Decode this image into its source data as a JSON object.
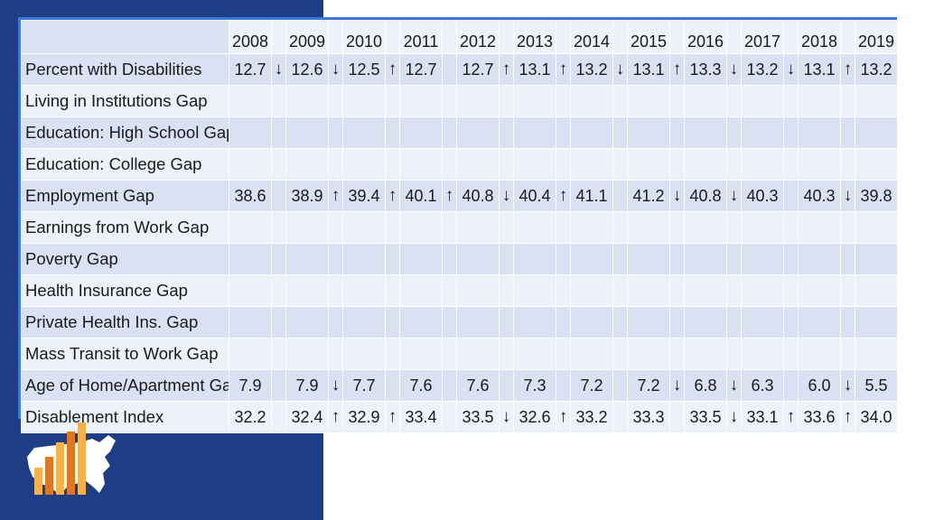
{
  "table": {
    "years": [
      "2008",
      "2009",
      "2010",
      "2011",
      "2012",
      "2013",
      "2014",
      "2015",
      "2016",
      "2017",
      "2018",
      "2019"
    ],
    "rows": [
      {
        "label": "Percent with Disabilities",
        "cells": [
          "12.7",
          "↓",
          "12.6",
          "↓",
          "12.5",
          "↑",
          "12.7",
          "",
          "12.7",
          "↑",
          "13.1",
          "↑",
          "13.2",
          "↓",
          "13.1",
          "↑",
          "13.3",
          "↓",
          "13.2",
          "↓",
          "13.1",
          "↑",
          "13.2"
        ]
      },
      {
        "label": "Living in Institutions Gap",
        "cells": [
          "",
          "",
          "",
          "",
          "",
          "",
          "",
          "",
          "",
          "",
          "",
          "",
          "",
          "",
          "",
          "",
          "",
          "",
          "",
          "",
          "",
          "",
          ""
        ]
      },
      {
        "label": "Education: High School Gap",
        "cells": [
          "",
          "",
          "",
          "",
          "",
          "",
          "",
          "",
          "",
          "",
          "",
          "",
          "",
          "",
          "",
          "",
          "",
          "",
          "",
          "",
          "",
          "",
          ""
        ]
      },
      {
        "label": "Education: College Gap",
        "cells": [
          "",
          "",
          "",
          "",
          "",
          "",
          "",
          "",
          "",
          "",
          "",
          "",
          "",
          "",
          "",
          "",
          "",
          "",
          "",
          "",
          "",
          "",
          ""
        ]
      },
      {
        "label": "Employment Gap",
        "cells": [
          "38.6",
          "",
          "38.9",
          "↑",
          "39.4",
          "↑",
          "40.1",
          "↑",
          "40.8",
          "↓",
          "40.4",
          "↑",
          "41.1",
          "",
          "41.2",
          "↓",
          "40.8",
          "↓",
          "40.3",
          "",
          "40.3",
          "↓",
          "39.8"
        ]
      },
      {
        "label": "Earnings from Work Gap",
        "cells": [
          "",
          "",
          "",
          "",
          "",
          "",
          "",
          "",
          "",
          "",
          "",
          "",
          "",
          "",
          "",
          "",
          "",
          "",
          "",
          "",
          "",
          "",
          ""
        ]
      },
      {
        "label": "Poverty Gap",
        "cells": [
          "",
          "",
          "",
          "",
          "",
          "",
          "",
          "",
          "",
          "",
          "",
          "",
          "",
          "",
          "",
          "",
          "",
          "",
          "",
          "",
          "",
          "",
          ""
        ]
      },
      {
        "label": "Health Insurance Gap",
        "cells": [
          "",
          "",
          "",
          "",
          "",
          "",
          "",
          "",
          "",
          "",
          "",
          "",
          "",
          "",
          "",
          "",
          "",
          "",
          "",
          "",
          "",
          "",
          ""
        ]
      },
      {
        "label": "Private Health Ins. Gap",
        "cells": [
          "",
          "",
          "",
          "",
          "",
          "",
          "",
          "",
          "",
          "",
          "",
          "",
          "",
          "",
          "",
          "",
          "",
          "",
          "",
          "",
          "",
          "",
          ""
        ]
      },
      {
        "label": "Mass Transit to Work Gap",
        "cells": [
          "",
          "",
          "",
          "",
          "",
          "",
          "",
          "",
          "",
          "",
          "",
          "",
          "",
          "",
          "",
          "",
          "",
          "",
          "",
          "",
          "",
          "",
          ""
        ]
      },
      {
        "label": "Age of Home/Apartment Gap",
        "cells": [
          "7.9",
          "",
          "7.9",
          "↓",
          "7.7",
          "",
          "7.6",
          "",
          "7.6",
          "",
          "7.3",
          "",
          "7.2",
          "",
          "7.2",
          "↓",
          "6.8",
          "↓",
          "6.3",
          "",
          "6.0",
          "↓",
          "5.5"
        ]
      },
      {
        "label": "Disablement Index",
        "cells": [
          "32.2",
          "",
          "32.4",
          "↑",
          "32.9",
          "↑",
          "33.4",
          "",
          "33.5",
          "↓",
          "32.6",
          "↑",
          "33.2",
          "",
          "33.3",
          "",
          "33.5",
          "↓",
          "33.1",
          "↑",
          "33.6",
          "↑",
          "34.0"
        ]
      }
    ]
  },
  "logo": {
    "icon": "us-map-bar-chart-icon",
    "colors": {
      "bar_light": "#f7b34a",
      "bar_dark": "#e0761f",
      "map": "#ffffff"
    }
  }
}
